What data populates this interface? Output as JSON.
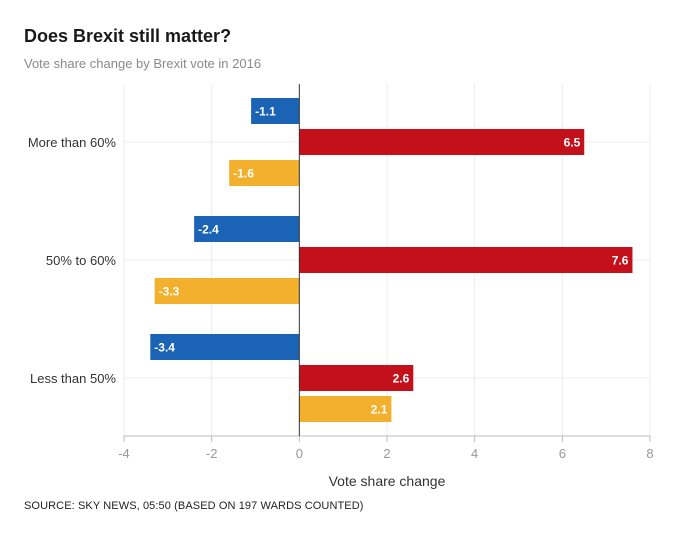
{
  "chart_data": {
    "type": "bar",
    "orientation": "horizontal",
    "title": "Does Brexit still matter?",
    "subtitle": "Vote share change by Brexit vote in 2016",
    "xlabel": "Vote share change",
    "categories": [
      "More than 60%",
      "50% to 60%",
      "Less than 50%"
    ],
    "series": [
      {
        "color": "#1a63b5",
        "values": [
          -1.1,
          -2.4,
          -3.4
        ]
      },
      {
        "color": "#c4101a",
        "values": [
          6.5,
          7.6,
          2.6
        ]
      },
      {
        "color": "#f2b02c",
        "values": [
          -1.6,
          -3.3,
          2.1
        ]
      }
    ],
    "xlim": [
      -4,
      8
    ],
    "xticks": [
      -4,
      -2,
      0,
      2,
      4,
      6,
      8
    ],
    "grid": true,
    "source": "SOURCE: SKY NEWS, 05:50 (BASED ON 197 WARDS COUNTED)"
  }
}
